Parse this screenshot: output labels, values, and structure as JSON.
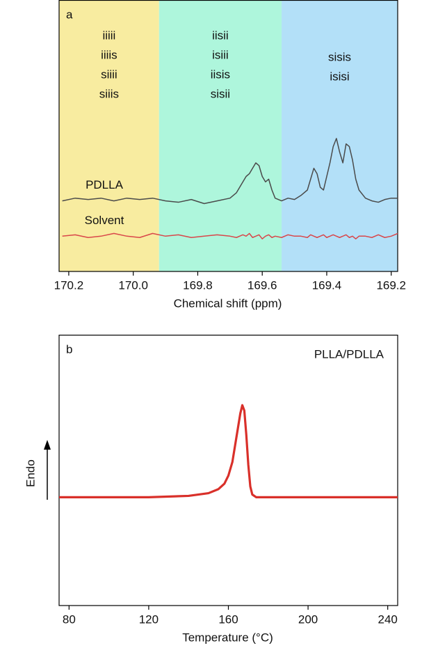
{
  "chart_data": [
    {
      "type": "line",
      "panel": "a",
      "xlabel": "Chemical shift (ppm)",
      "xlim": [
        170.23,
        169.18
      ],
      "ylim": [
        0,
        100
      ],
      "xticks": [
        170.2,
        {
          "value": 170,
          "label": "170.0"
        },
        169.8,
        169.6,
        169.4,
        169.2
      ],
      "regions": [
        {
          "from": 170.23,
          "to": 169.92,
          "color": "#f8eca0",
          "labels": [
            "iiiii",
            "iiiis",
            "siiii",
            "siiis"
          ]
        },
        {
          "from": 169.92,
          "to": 169.54,
          "color": "#aef6dc",
          "labels": [
            "iisii",
            "isiii",
            "iisis",
            "sisii"
          ]
        },
        {
          "from": 169.54,
          "to": 169.18,
          "color": "#b3e0f8",
          "labels": [
            "sisis",
            "isisi"
          ]
        }
      ],
      "x": [
        170.22,
        170.18,
        170.14,
        170.1,
        170.06,
        170.02,
        169.98,
        169.94,
        169.9,
        169.86,
        169.82,
        169.78,
        169.74,
        169.7,
        169.68,
        169.66,
        169.65,
        169.64,
        169.63,
        169.62,
        169.61,
        169.6,
        169.59,
        169.58,
        169.57,
        169.56,
        169.54,
        169.52,
        169.5,
        169.48,
        169.46,
        169.45,
        169.44,
        169.43,
        169.42,
        169.41,
        169.4,
        169.39,
        169.38,
        169.37,
        169.36,
        169.35,
        169.34,
        169.33,
        169.32,
        169.31,
        169.3,
        169.28,
        169.26,
        169.24,
        169.22,
        169.2,
        169.18
      ],
      "series": [
        {
          "name": "PDLLA",
          "color": "#4a4a4a",
          "values": [
            26,
            27,
            26.5,
            27,
            26,
            27,
            26.5,
            27,
            26,
            25.5,
            26.5,
            25,
            26,
            27,
            29,
            33,
            35,
            36,
            38,
            40,
            39,
            35,
            33,
            34,
            30,
            27,
            26,
            27,
            26.5,
            28,
            30,
            34,
            38,
            36,
            31,
            30,
            35,
            40,
            46,
            49,
            44,
            40,
            47,
            46,
            41,
            34,
            30,
            27,
            26,
            25.5,
            26.5,
            27,
            27
          ]
        },
        {
          "name": "Solvent",
          "color": "#d9464a",
          "values": [
            13,
            13.5,
            12.5,
            13,
            14,
            13,
            12.5,
            14,
            13,
            13.5,
            12.5,
            13,
            13.5,
            13,
            12.5,
            13.5,
            13,
            14,
            12.5,
            13,
            13.5,
            12,
            13,
            13.5,
            12.5,
            13,
            12.5,
            13.5,
            13,
            13,
            12.5,
            13.5,
            13,
            12.5,
            13,
            13.5,
            12.5,
            13,
            13.5,
            13,
            12.5,
            13,
            13.5,
            12.5,
            13,
            12,
            13,
            13,
            12.5,
            13.5,
            12.5,
            13,
            14
          ]
        }
      ]
    },
    {
      "type": "line",
      "panel": "b",
      "xlabel": "Temperature (°C)",
      "ylabel": "Endo",
      "annotation": "PLLA/PDLLA",
      "xlim": [
        75,
        245
      ],
      "ylim": [
        0,
        100
      ],
      "xticks": [
        80,
        120,
        160,
        200,
        240
      ],
      "x": [
        75,
        100,
        120,
        140,
        150,
        155,
        158,
        160,
        162,
        164,
        166,
        167,
        168,
        169,
        170,
        171,
        172,
        174,
        180,
        200,
        220,
        245
      ],
      "series": [
        {
          "color": "#d9302a",
          "values": [
            40,
            40,
            40,
            40.5,
            41.5,
            43,
            45,
            48,
            53,
            62,
            71,
            74,
            72,
            63,
            52,
            44,
            41,
            40,
            40,
            40,
            40,
            40
          ]
        }
      ]
    }
  ]
}
